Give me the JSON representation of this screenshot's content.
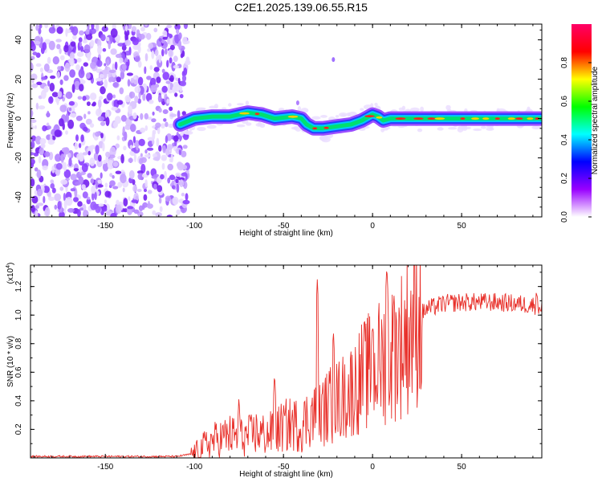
{
  "title": "C2E1.2025.139.06.55.R15",
  "chart_data": [
    {
      "type": "heatmap",
      "xlabel": "Height of straight line (km)",
      "ylabel": "Frequency (Hz)",
      "xlim": [
        -192,
        95
      ],
      "ylim": [
        -50,
        48
      ],
      "xticks": [
        -150,
        -100,
        -50,
        0,
        50
      ],
      "yticks": [
        -40,
        -20,
        0,
        20,
        40
      ],
      "signal_ridge": {
        "x": [
          -108,
          -100,
          -90,
          -80,
          -70,
          -62,
          -55,
          -45,
          -40,
          -37,
          -33,
          -28,
          -20,
          -12,
          -6,
          -2,
          0,
          3,
          6,
          10,
          20,
          30,
          50,
          70,
          85,
          95
        ],
        "y": [
          -3,
          0,
          1,
          1,
          3,
          2,
          0,
          1,
          0,
          -3,
          -5,
          -5,
          -4,
          -3,
          -1,
          1,
          2,
          1,
          -1,
          0,
          0,
          0,
          0,
          0,
          0,
          0
        ]
      },
      "noise_region_x": [
        -192,
        -108
      ],
      "colorbar": {
        "label": "Normalized spectral amplitude",
        "range": [
          0,
          1
        ],
        "ticks": [
          "0.0",
          "0.2",
          "0.4",
          "0.6",
          "0.8"
        ],
        "colors": [
          "#ffffff",
          "#9900ff",
          "#0000ff",
          "#00ffff",
          "#00ff00",
          "#ffff00",
          "#ff0000",
          "#ff0066"
        ]
      }
    },
    {
      "type": "line",
      "xlabel": "Height of straight line (km)",
      "ylabel": "SNR (10 * v/v)",
      "yscale_label": "(x10",
      "yscale_exp": "4",
      "yscale_close": ")",
      "xlim": [
        -192,
        95
      ],
      "ylim": [
        0,
        1.35
      ],
      "xticks": [
        -150,
        -100,
        -50,
        0,
        50
      ],
      "yticks": [
        0.2,
        0.4,
        0.6,
        0.8,
        1.0,
        1.2
      ],
      "color": "#e8302a",
      "x": [
        -192,
        -150,
        -110,
        -100,
        -95,
        -90,
        -85,
        -80,
        -75,
        -70,
        -65,
        -60,
        -55,
        -50,
        -45,
        -40,
        -35,
        -30,
        -25,
        -20,
        -15,
        -10,
        -5,
        0,
        5,
        10,
        15,
        20,
        25,
        30,
        40,
        50,
        60,
        70,
        80,
        90,
        95
      ],
      "y": [
        0.01,
        0.01,
        0.01,
        0.03,
        0.08,
        0.12,
        0.14,
        0.16,
        0.14,
        0.15,
        0.18,
        0.16,
        0.18,
        0.22,
        0.24,
        0.22,
        0.3,
        0.3,
        0.36,
        0.4,
        0.44,
        0.5,
        0.58,
        0.62,
        0.68,
        0.72,
        0.78,
        0.88,
        0.98,
        1.04,
        1.08,
        1.09,
        1.09,
        1.09,
        1.08,
        1.07,
        1.06
      ],
      "spikes": [
        {
          "x": -31,
          "y": 1.25
        },
        {
          "x": -22,
          "y": 0.9
        },
        {
          "x": 0,
          "y": 0.95
        },
        {
          "x": 8,
          "y": 1.35
        },
        {
          "x": 12,
          "y": 1.15
        },
        {
          "x": -75,
          "y": 0.44
        },
        {
          "x": -55,
          "y": 0.6
        },
        {
          "x": 92,
          "y": 1.2
        }
      ]
    }
  ]
}
